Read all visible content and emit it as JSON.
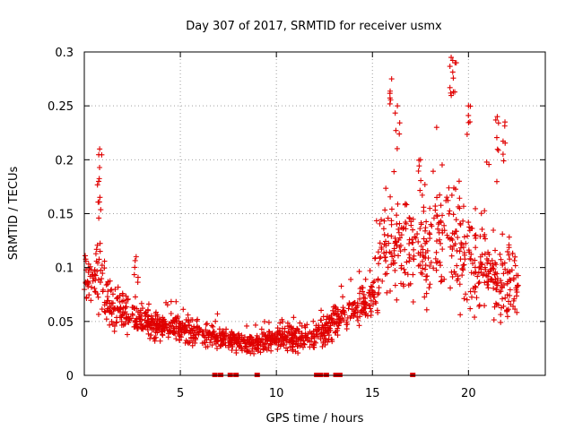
{
  "chart_data": {
    "type": "scatter",
    "title": "Day 307 of 2017, SRMTID for receiver usmx",
    "xlabel": "GPS time / hours",
    "ylabel": "SRMTID / TECUs",
    "xlim": [
      0,
      24
    ],
    "ylim": [
      0,
      0.3
    ],
    "xticks": [
      0,
      5,
      10,
      15,
      20
    ],
    "xtick_labels": [
      "0",
      "5",
      "10",
      "15",
      "20"
    ],
    "yticks": [
      0,
      0.05,
      0.1,
      0.15,
      0.2,
      0.25,
      0.3
    ],
    "ytick_labels": [
      "0",
      "0.05",
      "0.1",
      "0.15",
      "0.2",
      "0.25",
      "0.3"
    ],
    "grid": true,
    "marker": "+",
    "color": "#e00000",
    "trend": {
      "x": [
        0,
        0.5,
        0.8,
        1.0,
        1.5,
        2,
        3,
        4,
        5,
        6,
        7,
        8,
        9,
        10,
        11,
        12,
        12.5,
        13,
        14,
        15,
        15.5,
        16,
        17,
        18,
        19,
        20,
        21,
        22,
        22.6
      ],
      "y": [
        0.09,
        0.085,
        0.1,
        0.07,
        0.065,
        0.06,
        0.05,
        0.045,
        0.045,
        0.04,
        0.035,
        0.03,
        0.03,
        0.035,
        0.035,
        0.035,
        0.04,
        0.05,
        0.06,
        0.075,
        0.11,
        0.12,
        0.115,
        0.12,
        0.13,
        0.11,
        0.095,
        0.09,
        0.085
      ],
      "spread": [
        0.02,
        0.025,
        0.04,
        0.02,
        0.02,
        0.018,
        0.015,
        0.012,
        0.012,
        0.012,
        0.01,
        0.01,
        0.01,
        0.012,
        0.012,
        0.012,
        0.012,
        0.014,
        0.018,
        0.02,
        0.04,
        0.045,
        0.045,
        0.045,
        0.05,
        0.045,
        0.04,
        0.035,
        0.03
      ]
    },
    "peaks": [
      {
        "x": 0.8,
        "y": 0.21
      },
      {
        "x": 0.75,
        "y": 0.18
      },
      {
        "x": 16.0,
        "y": 0.275
      },
      {
        "x": 16.3,
        "y": 0.25
      },
      {
        "x": 19.1,
        "y": 0.295
      },
      {
        "x": 19.3,
        "y": 0.29
      },
      {
        "x": 20.0,
        "y": 0.25
      },
      {
        "x": 21.5,
        "y": 0.24
      },
      {
        "x": 21.9,
        "y": 0.235
      },
      {
        "x": 17.5,
        "y": 0.2
      },
      {
        "x": 2.7,
        "y": 0.11
      }
    ],
    "zero_markers_x": [
      6.8,
      7.1,
      7.6,
      7.9,
      9.0,
      12.1,
      12.3,
      12.6,
      13.1,
      13.3,
      17.1
    ],
    "data_range_x": [
      0,
      22.6
    ]
  }
}
